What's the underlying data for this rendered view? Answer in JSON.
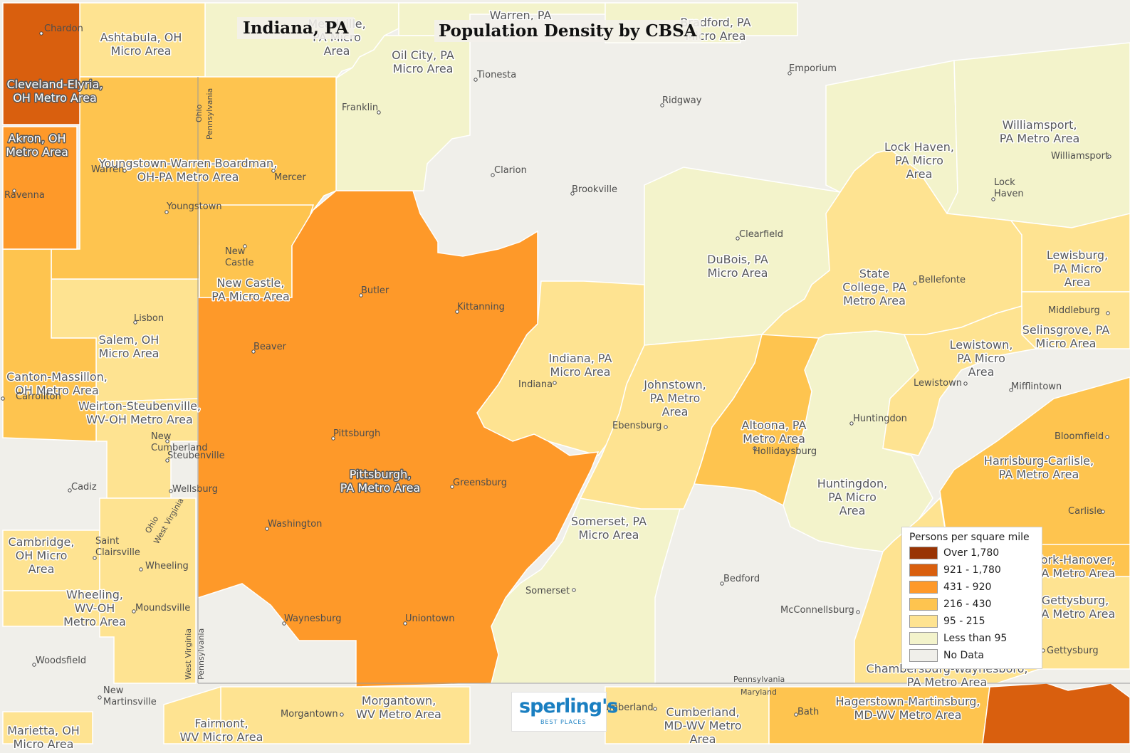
{
  "title": {
    "place": "Indiana, PA",
    "main": "Population Density by CBSA"
  },
  "colors": {
    "over_1780": "#993404",
    "c921_1780": "#d95f0e",
    "c431_920": "#fe9929",
    "c216_430": "#fec44f",
    "c95_215": "#fee391",
    "less_95": "#f3f3cb",
    "no_data": "#f0efea",
    "border": "#ffffff",
    "label": "#58595b"
  },
  "legend": {
    "title": "Persons per square mile",
    "items": [
      {
        "label": "Over 1,780",
        "color": "#993404"
      },
      {
        "label": "921 - 1,780",
        "color": "#d95f0e"
      },
      {
        "label": "431 - 920",
        "color": "#fe9929"
      },
      {
        "label": "216 - 430",
        "color": "#fec44f"
      },
      {
        "label": "95 - 215",
        "color": "#fee391"
      },
      {
        "label": "Less than 95",
        "color": "#f3f3cb"
      },
      {
        "label": "No Data",
        "color": "#f0efea"
      }
    ]
  },
  "cbsa_labels": [
    {
      "lines": [
        "Meadville,",
        "PA Micro",
        "Area"
      ],
      "class": "less_95"
    },
    {
      "lines": [
        "Warren, PA"
      ],
      "class": "less_95"
    },
    {
      "lines": [
        "Bradford, PA",
        "Micro Area"
      ],
      "class": "less_95"
    },
    {
      "lines": [
        "Ashtabula, OH",
        "Micro Area"
      ],
      "class": "c95_215"
    },
    {
      "lines": [
        "Oil City, PA",
        "Micro Area"
      ],
      "class": "less_95"
    },
    {
      "lines": [
        "Cleveland-Elyria,",
        "OH Metro Area"
      ],
      "class": "c921_1780"
    },
    {
      "lines": [
        "Akron, OH",
        "Metro Area"
      ],
      "class": "c431_920"
    },
    {
      "lines": [
        "Youngstown-Warren-Boardman,",
        "OH-PA Metro Area"
      ],
      "class": "c216_430"
    },
    {
      "lines": [
        "New Castle,",
        "PA Micro Area"
      ],
      "class": "c216_430"
    },
    {
      "lines": [
        "Salem, OH",
        "Micro Area"
      ],
      "class": "c95_215"
    },
    {
      "lines": [
        "Canton-Massillon,",
        "OH Metro Area"
      ],
      "class": "c216_430"
    },
    {
      "lines": [
        "Weirton-Steubenville,",
        "WV-OH Metro Area"
      ],
      "class": "c95_215"
    },
    {
      "lines": [
        "Cambridge,",
        "OH Micro",
        "Area"
      ],
      "class": "c95_215"
    },
    {
      "lines": [
        "Wheeling,",
        "WV-OH",
        "Metro Area"
      ],
      "class": "c95_215"
    },
    {
      "lines": [
        "Pittsburgh,",
        "PA Metro Area"
      ],
      "class": "c431_920"
    },
    {
      "lines": [
        "Indiana, PA",
        "Micro Area"
      ],
      "class": "c95_215"
    },
    {
      "lines": [
        "Johnstown,",
        "PA Metro",
        "Area"
      ],
      "class": "c95_215"
    },
    {
      "lines": [
        "Somerset, PA",
        "Micro Area"
      ],
      "class": "less_95"
    },
    {
      "lines": [
        "DuBois, PA",
        "Micro Area"
      ],
      "class": "less_95"
    },
    {
      "lines": [
        "Lock Haven,",
        "PA Micro",
        "Area"
      ],
      "class": "less_95"
    },
    {
      "lines": [
        "Williamsport,",
        "PA Metro Area"
      ],
      "class": "less_95"
    },
    {
      "lines": [
        "State",
        "College, PA",
        "Metro Area"
      ],
      "class": "c95_215"
    },
    {
      "lines": [
        "Lewisburg,",
        "PA Micro",
        "Area"
      ],
      "class": "c95_215"
    },
    {
      "lines": [
        "Selinsgrove, PA",
        "Micro Area"
      ],
      "class": "c95_215"
    },
    {
      "lines": [
        "Lewistown,",
        "PA Micro",
        "Area"
      ],
      "class": "c95_215"
    },
    {
      "lines": [
        "Altoona, PA",
        "Metro Area"
      ],
      "class": "c216_430"
    },
    {
      "lines": [
        "Huntingdon,",
        "PA Micro",
        "Area"
      ],
      "class": "less_95"
    },
    {
      "lines": [
        "Harrisburg-Carlisle,",
        "PA Metro Area"
      ],
      "class": "c216_430"
    },
    {
      "lines": [
        "York-Hanover,",
        "PA Metro Area"
      ],
      "class": "c216_430"
    },
    {
      "lines": [
        "Gettysburg,",
        "PA Metro Area"
      ],
      "class": "c95_215"
    },
    {
      "lines": [
        "Chambersburg-Waynesboro,",
        "PA Metro Area"
      ],
      "class": "c95_215"
    },
    {
      "lines": [
        "Hagerstown-Martinsburg,",
        "MD-WV Metro Area"
      ],
      "class": "c216_430"
    },
    {
      "lines": [
        "Cumberland,",
        "MD-WV Metro",
        "Area"
      ],
      "class": "c95_215"
    },
    {
      "lines": [
        "Morgantown,",
        "WV Metro Area"
      ],
      "class": "c95_215"
    },
    {
      "lines": [
        "Fairmont,",
        "WV Micro Area"
      ],
      "class": "c95_215"
    },
    {
      "lines": [
        "Marietta, OH",
        "Micro Area"
      ],
      "class": "c95_215"
    }
  ],
  "cities": [
    "Chardon",
    "Tionesta",
    "Emporium",
    "Franklin",
    "Ridgway",
    "Warren",
    "Mercer",
    "Ravenna",
    "Clarion",
    "Brookville",
    "Youngstown",
    "Williamsport",
    "Lock Haven",
    "New Castle",
    "Clearfield",
    "Butler",
    "Kittanning",
    "Bellefonte",
    "Lisbon",
    "Middleburg",
    "Beaver",
    "Carrollton",
    "Indiana",
    "Lewistown",
    "Mifflintown",
    "New Cumberland",
    "Huntingdon",
    "Ebensburg",
    "Pittsburgh",
    "Steubenville",
    "Bloomfield",
    "Hollidaysburg",
    "Cadiz",
    "Greensburg",
    "Wellsburg",
    "Carlisle",
    "Washington",
    "Saint Clairsville",
    "Wheeling",
    "Bedford",
    "Somerset",
    "Moundsville",
    "McConnellsburg",
    "Waynesburg",
    "Uniontown",
    "Woodsfield",
    "Gettysburg",
    "New Martinsville",
    "Morgantown",
    "Cumberland",
    "Bath"
  ],
  "state_labels": [
    "Ohio",
    "Pennsylvania",
    "Ohio",
    "West Virginia",
    "West Virginia",
    "Pennsylvania",
    "Pennsylvania",
    "Maryland"
  ],
  "logo": {
    "word": "sperling's",
    "sub": "BEST PLACES"
  }
}
